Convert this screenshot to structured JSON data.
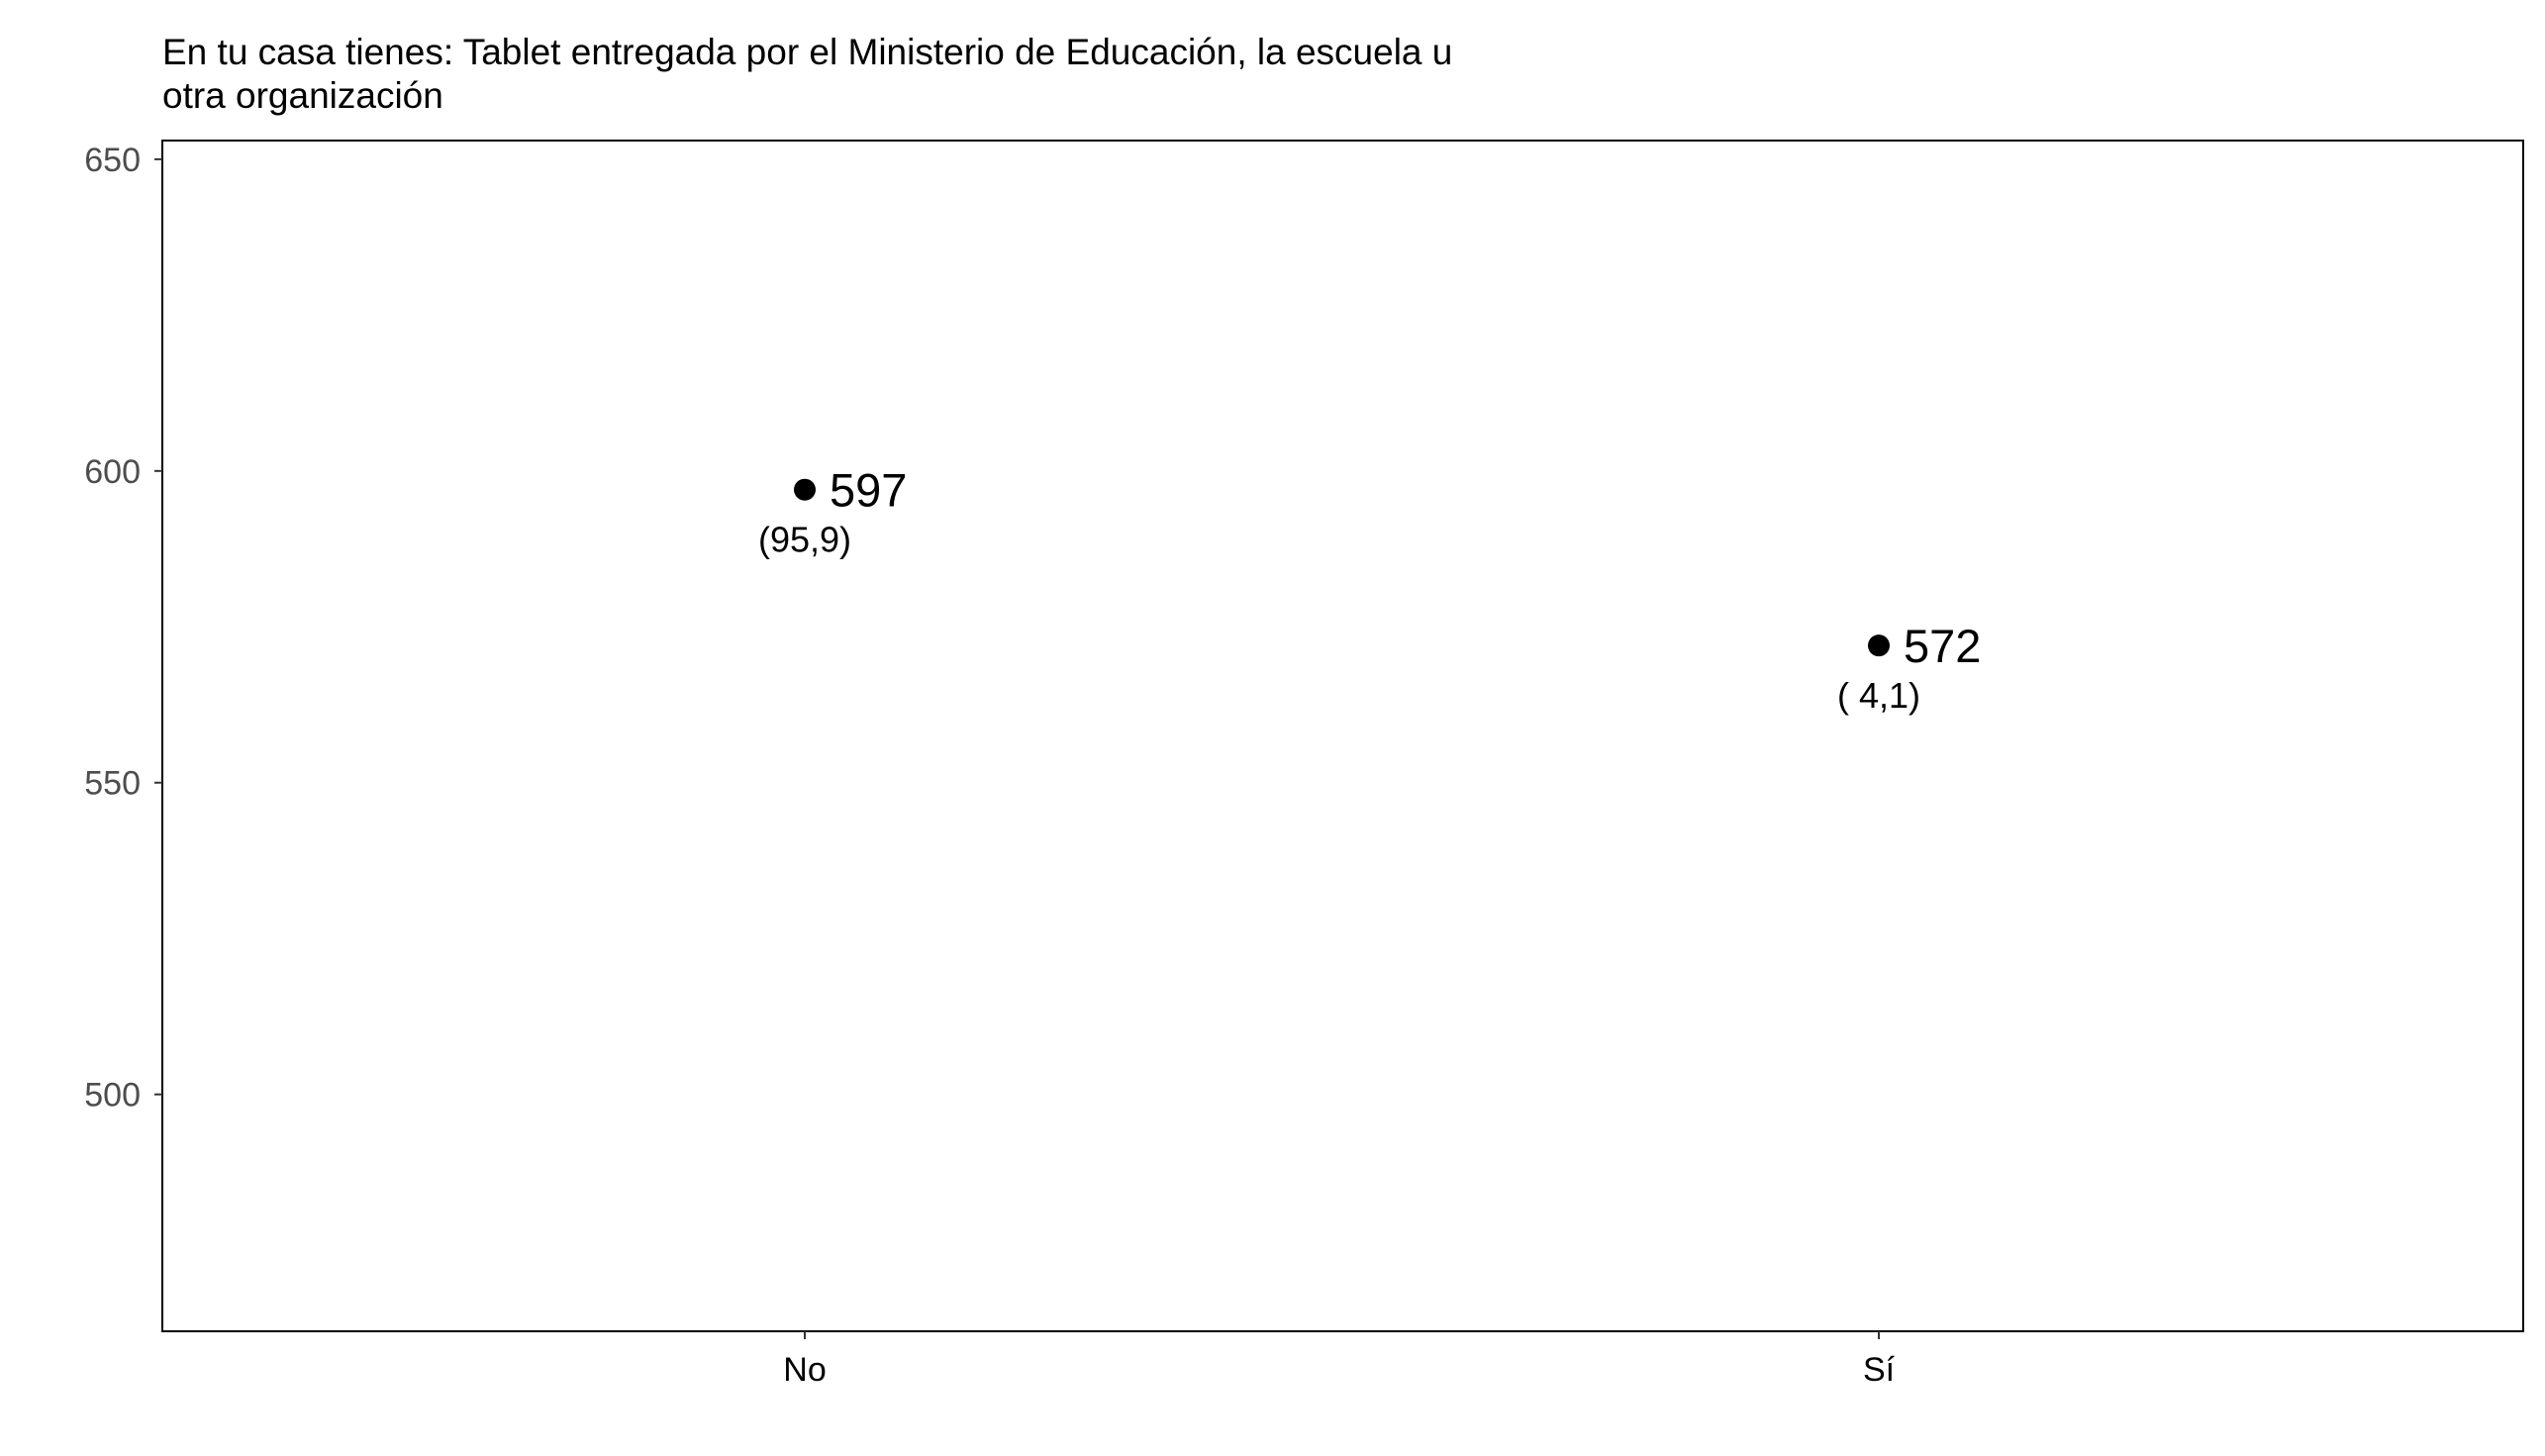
{
  "chart_data": {
    "type": "scatter",
    "title": "En tu casa tienes: Tablet entregada por el Ministerio de Educación, la escuela u otra organización",
    "title_lines": [
      "En tu casa tienes: Tablet entregada por el Ministerio de Educación, la escuela u",
      "otra organización"
    ],
    "xlabel": "",
    "ylabel": "",
    "categories": [
      "No",
      "Sí"
    ],
    "values": [
      597,
      572
    ],
    "value_labels": [
      "597",
      "572"
    ],
    "percent_labels": [
      "(95,9)",
      "( 4,1)"
    ],
    "y_ticks": [
      500,
      550,
      600,
      650
    ],
    "y_tick_labels": [
      "500",
      "550",
      "600",
      "650"
    ],
    "ylim": [
      462,
      653
    ],
    "grid": false,
    "legend": "none",
    "point_color": "#000000",
    "frame_color": "#000000"
  }
}
